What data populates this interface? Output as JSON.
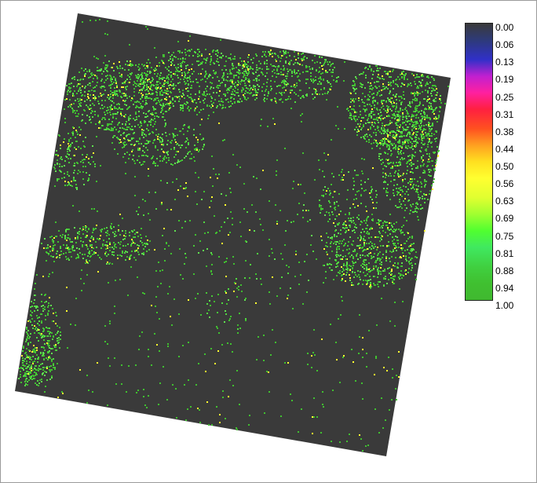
{
  "colors": {
    "background": "#3a3a3a",
    "ramp": [
      {
        "value": 0.0,
        "color": "#3a3a3a"
      },
      {
        "value": 0.06,
        "color": "#2e3a7a"
      },
      {
        "value": 0.13,
        "color": "#3030c8"
      },
      {
        "value": 0.19,
        "color": "#c020d0"
      },
      {
        "value": 0.25,
        "color": "#ff20a0"
      },
      {
        "value": 0.31,
        "color": "#ff2040"
      },
      {
        "value": 0.38,
        "color": "#ff5020"
      },
      {
        "value": 0.44,
        "color": "#ffa020"
      },
      {
        "value": 0.5,
        "color": "#ffe020"
      },
      {
        "value": 0.56,
        "color": "#ffff30"
      },
      {
        "value": 0.63,
        "color": "#e0ff30"
      },
      {
        "value": 0.69,
        "color": "#a0ff30"
      },
      {
        "value": 0.75,
        "color": "#50ff30"
      },
      {
        "value": 0.81,
        "color": "#40e860"
      },
      {
        "value": 0.88,
        "color": "#40d040"
      },
      {
        "value": 0.94,
        "color": "#40c030"
      },
      {
        "value": 1.0,
        "color": "#40b830"
      }
    ]
  },
  "legend": {
    "labels": [
      "0.00",
      "0.06",
      "0.13",
      "0.19",
      "0.25",
      "0.31",
      "0.38",
      "0.44",
      "0.50",
      "0.56",
      "0.63",
      "0.69",
      "0.75",
      "0.81",
      "0.88",
      "0.94",
      "1.00"
    ]
  }
}
